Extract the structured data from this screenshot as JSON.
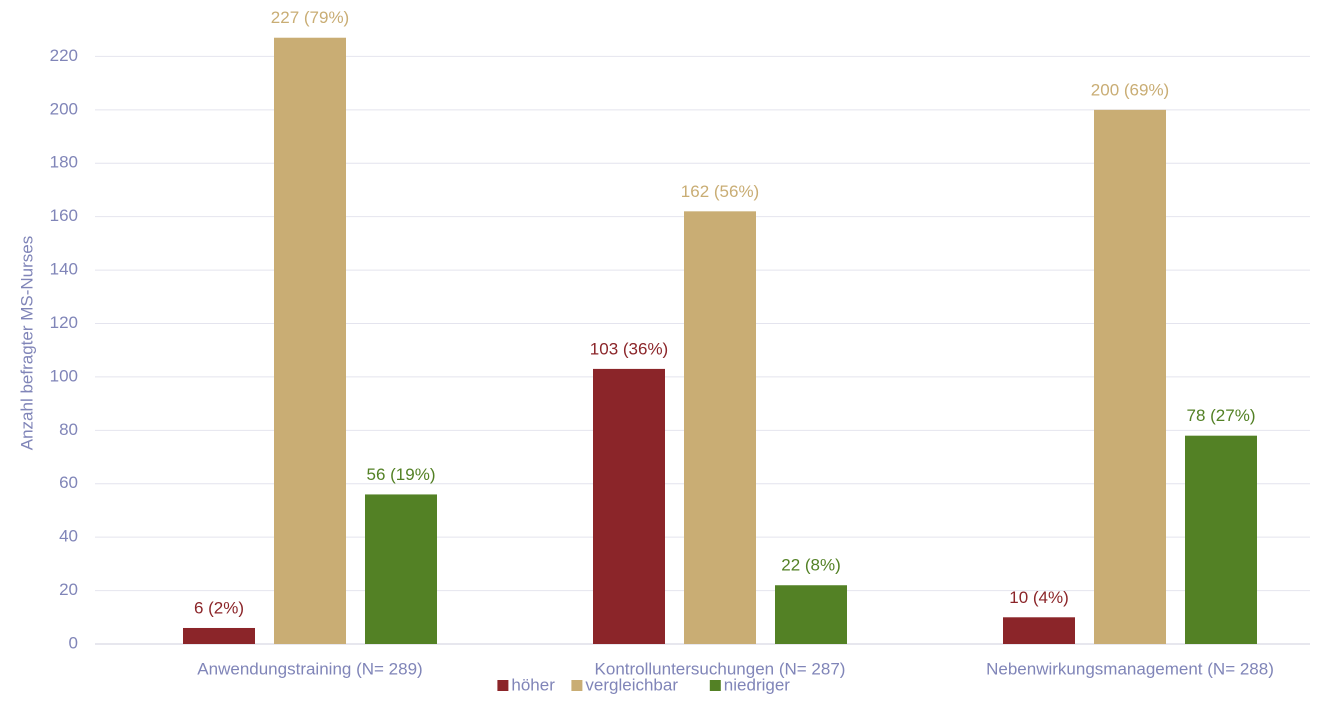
{
  "chart_data": {
    "type": "bar",
    "y_label": "Anzahl befragter MS-Nurses",
    "categories": [
      "Anwendungstraining (N= 289)",
      "Kontrolluntersuchungen (N= 287)",
      "Nebenwirkungsmanagement (N= 288)"
    ],
    "series": [
      {
        "name": "höher",
        "color": "#8b2529",
        "values": [
          6,
          103,
          10
        ],
        "value_labels": [
          "6 (2%)",
          "103 (36%)",
          "10 (4%)"
        ]
      },
      {
        "name": "vergleichbar",
        "color": "#c9ad74",
        "values": [
          227,
          162,
          200
        ],
        "value_labels": [
          "227 (79%)",
          "162 (56%)",
          "200 (69%)"
        ]
      },
      {
        "name": "niedriger",
        "color": "#538125",
        "values": [
          56,
          22,
          78
        ],
        "value_labels": [
          "56 (19%)",
          "22 (8%)",
          "78 (27%)"
        ]
      }
    ],
    "ylim": [
      0,
      240
    ],
    "yticks": [
      0,
      20,
      40,
      60,
      80,
      100,
      120,
      140,
      160,
      180,
      200,
      220
    ],
    "grid": true,
    "legend": "bottom"
  }
}
